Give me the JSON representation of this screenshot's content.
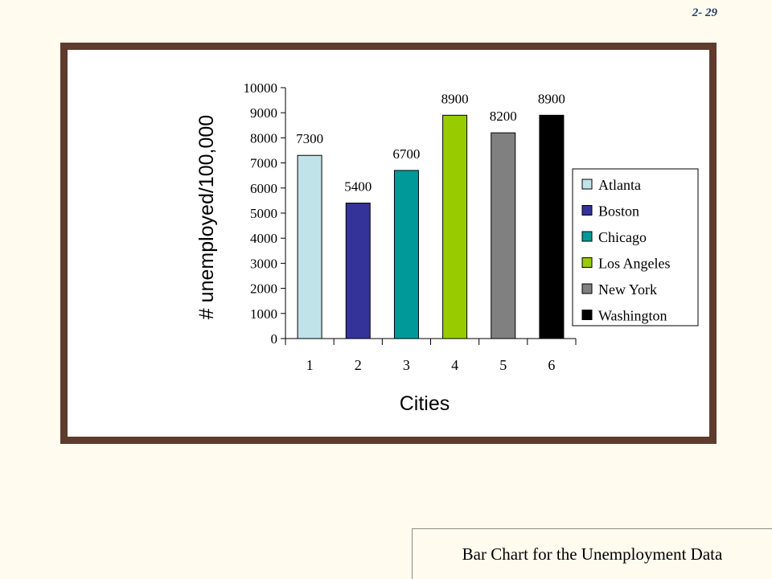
{
  "slide": {
    "number": "2- 29"
  },
  "caption": "Bar Chart for the Unemployment Data",
  "chart_data": {
    "type": "bar",
    "categories": [
      "1",
      "2",
      "3",
      "4",
      "5",
      "6"
    ],
    "values": [
      7300,
      5400,
      6700,
      8900,
      8200,
      8900
    ],
    "data_labels": [
      "7300",
      "5400",
      "6700",
      "8900",
      "8200",
      "8900"
    ],
    "series_names": [
      "Atlanta",
      "Boston",
      "Chicago",
      "Los Angeles",
      "New York",
      "Washington"
    ],
    "colors": [
      "#BFE3E8",
      "#333399",
      "#009999",
      "#99CC00",
      "#808080",
      "#000000"
    ],
    "xlabel": "Cities",
    "ylabel": "# unemployed/100,000",
    "ylim": [
      0,
      10000
    ],
    "yticks": [
      0,
      1000,
      2000,
      3000,
      4000,
      5000,
      6000,
      7000,
      8000,
      9000,
      10000
    ],
    "grid": false,
    "legend_position": "right"
  }
}
